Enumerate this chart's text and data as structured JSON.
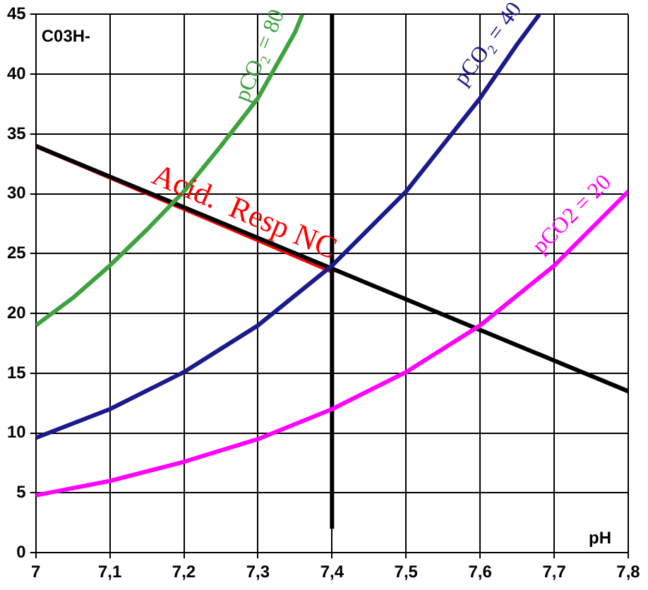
{
  "chart_data": {
    "type": "line",
    "ylabel": "C03H-",
    "xlabel": "pH",
    "xlim": [
      7,
      7.8
    ],
    "ylim": [
      0,
      45
    ],
    "xticks": [
      7,
      {
        "value": 7.1,
        "label": "7,1"
      },
      {
        "value": 7.2,
        "label": "7,2"
      },
      {
        "value": 7.3,
        "label": "7,3"
      },
      {
        "value": 7.4,
        "label": "7,4"
      },
      {
        "value": 7.5,
        "label": "7,5"
      },
      {
        "value": 7.6,
        "label": "7,6"
      },
      {
        "value": 7.7,
        "label": "7,7"
      },
      {
        "value": 7.8,
        "label": "7,8"
      }
    ],
    "yticks": [
      0,
      5,
      10,
      15,
      20,
      25,
      30,
      35,
      40,
      45
    ],
    "grid": true,
    "legend": false,
    "marker": "none",
    "line_style": "solid",
    "series": [
      {
        "name": "pCO₂ = 80",
        "color": "#3ea33e",
        "x": [
          7,
          7.05,
          7.1,
          7.15,
          7.2,
          7.25,
          7.3,
          7.35,
          7.36
        ],
        "values": [
          19,
          21.3,
          24,
          27,
          30.2,
          34,
          38,
          43.5,
          45
        ]
      },
      {
        "name": "pCO₂ = 40",
        "color": "#1a1a8c",
        "x": [
          7,
          7.1,
          7.2,
          7.3,
          7.4,
          7.5,
          7.6,
          7.65,
          7.68
        ],
        "values": [
          9.6,
          12,
          15.1,
          19,
          24,
          30.2,
          38,
          42.5,
          45
        ]
      },
      {
        "name": "pCO2 = 20",
        "color": "#ff00ff",
        "x": [
          7,
          7.1,
          7.2,
          7.3,
          7.4,
          7.5,
          7.6,
          7.7,
          7.8
        ],
        "values": [
          4.8,
          6,
          7.6,
          9.5,
          12,
          15.1,
          19,
          24,
          30.2
        ]
      },
      {
        "color": "#000000",
        "x": [
          7,
          7.8
        ],
        "values": [
          34,
          13.5
        ]
      },
      {
        "color": "#000000",
        "x": [
          7.4,
          7.4
        ],
        "values": [
          2,
          45
        ]
      },
      {
        "name": "Acid.  Resp NC",
        "color": "#ff0000",
        "x": [
          7,
          7.4
        ],
        "values": [
          34,
          23.5
        ]
      }
    ]
  }
}
